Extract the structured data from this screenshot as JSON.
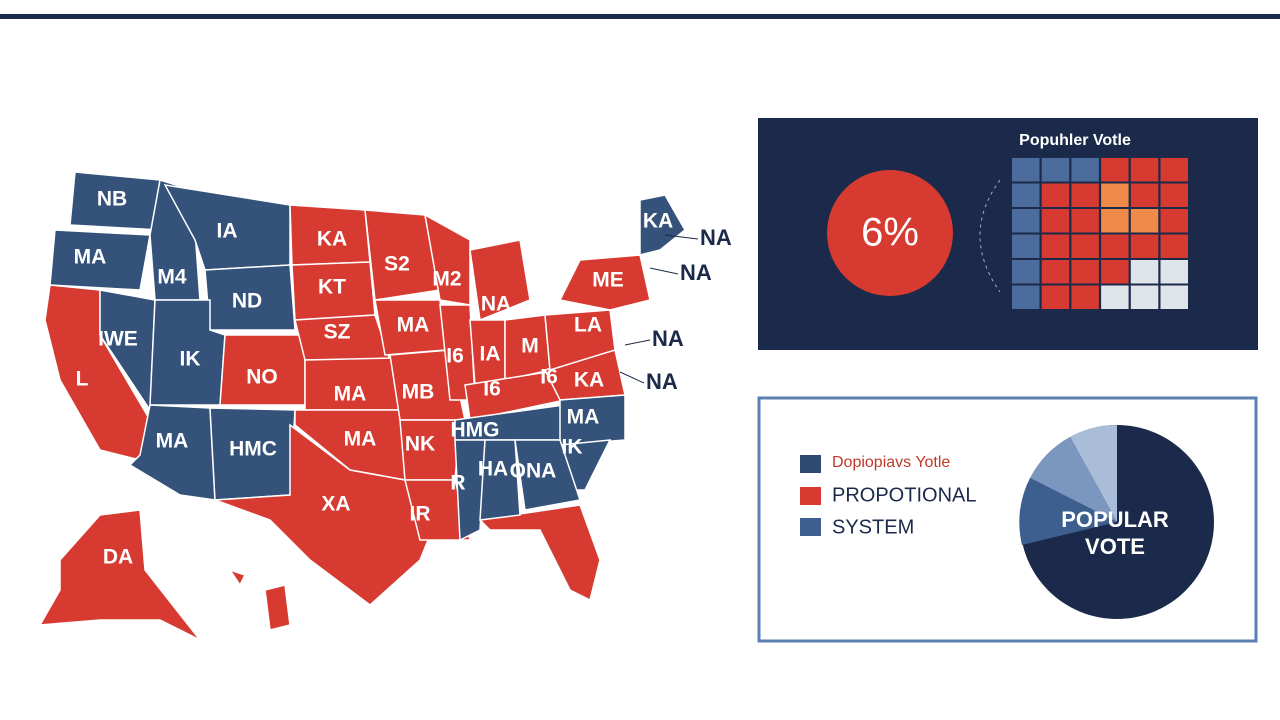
{
  "map": {
    "state_labels": [
      "NB",
      "IA",
      "MA",
      "M4",
      "ND",
      "KA",
      "KT",
      "S2",
      "M2",
      "MA",
      "SZ",
      "IWE",
      "IK",
      "NO",
      "L",
      "I6",
      "IA",
      "M",
      "LA",
      "ME",
      "KA",
      "NA",
      "MA",
      "MB",
      "I6",
      "I6",
      "KA",
      "MA",
      "HMC",
      "MA",
      "NK",
      "HMG",
      "IK",
      "MA",
      "R",
      "HA",
      "ONA",
      "XA",
      "IR",
      "DA"
    ],
    "callouts": [
      "NA",
      "NA",
      "NA",
      "NA"
    ]
  },
  "vote_panel": {
    "title": "Popuhler Votle",
    "percent": "6%"
  },
  "legend": {
    "items": [
      "Dopiopiavs Yotle",
      "PROPOTIONAL",
      "SYSTEM"
    ]
  },
  "pie": {
    "label_lines": [
      "POPULAR",
      "VOTE"
    ]
  }
}
